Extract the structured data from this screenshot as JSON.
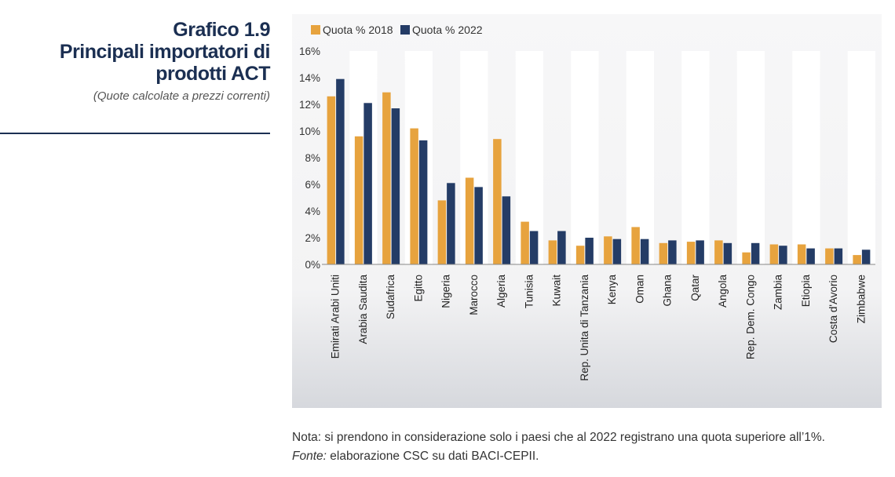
{
  "header": {
    "title_lines": [
      "Grafico 1.9",
      "Principali importatori di",
      "prodotti ACT"
    ],
    "subtitle": "(Quote calcolate a prezzi correnti)"
  },
  "footer": {
    "note": "Nota: si prendono in considerazione solo i paesi che al 2022 registrano una quota superiore all’1%.",
    "source_label": "Fonte:",
    "source_text": " elaborazione CSC su dati BACI-CEPII."
  },
  "colors": {
    "series_2018": "#e7a33e",
    "series_2022": "#243c66",
    "band": "#ffffff",
    "background": "#f4f4f5"
  },
  "chart_data": {
    "type": "bar",
    "categories": [
      "Emirati Arabi Uniti",
      "Arabia Saudita",
      "Sudafrica",
      "Egitto",
      "Nigeria",
      "Marocco",
      "Algeria",
      "Tunisia",
      "Kuwait",
      "Rep. Unita di Tanzania",
      "Kenya",
      "Oman",
      "Ghana",
      "Qatar",
      "Angola",
      "Rep. Dem. Congo",
      "Zambia",
      "Etiopia",
      "Costa d'Avorio",
      "Zimbabwe"
    ],
    "series": [
      {
        "name": "Quota % 2018",
        "values": [
          12.6,
          9.6,
          12.9,
          10.2,
          4.8,
          6.5,
          9.4,
          3.2,
          1.8,
          1.4,
          2.1,
          2.8,
          1.6,
          1.7,
          1.8,
          0.9,
          1.5,
          1.5,
          1.2,
          0.7
        ]
      },
      {
        "name": "Quota % 2022",
        "values": [
          13.9,
          12.1,
          11.7,
          9.3,
          6.1,
          5.8,
          5.1,
          2.5,
          2.5,
          2.0,
          1.9,
          1.9,
          1.8,
          1.8,
          1.6,
          1.6,
          1.4,
          1.2,
          1.2,
          1.1
        ]
      }
    ],
    "y_ticks": [
      "0%",
      "2%",
      "4%",
      "6%",
      "8%",
      "10%",
      "12%",
      "14%",
      "16%"
    ],
    "ylim": [
      0,
      16
    ],
    "legend_position": "top-left",
    "grid": false
  }
}
